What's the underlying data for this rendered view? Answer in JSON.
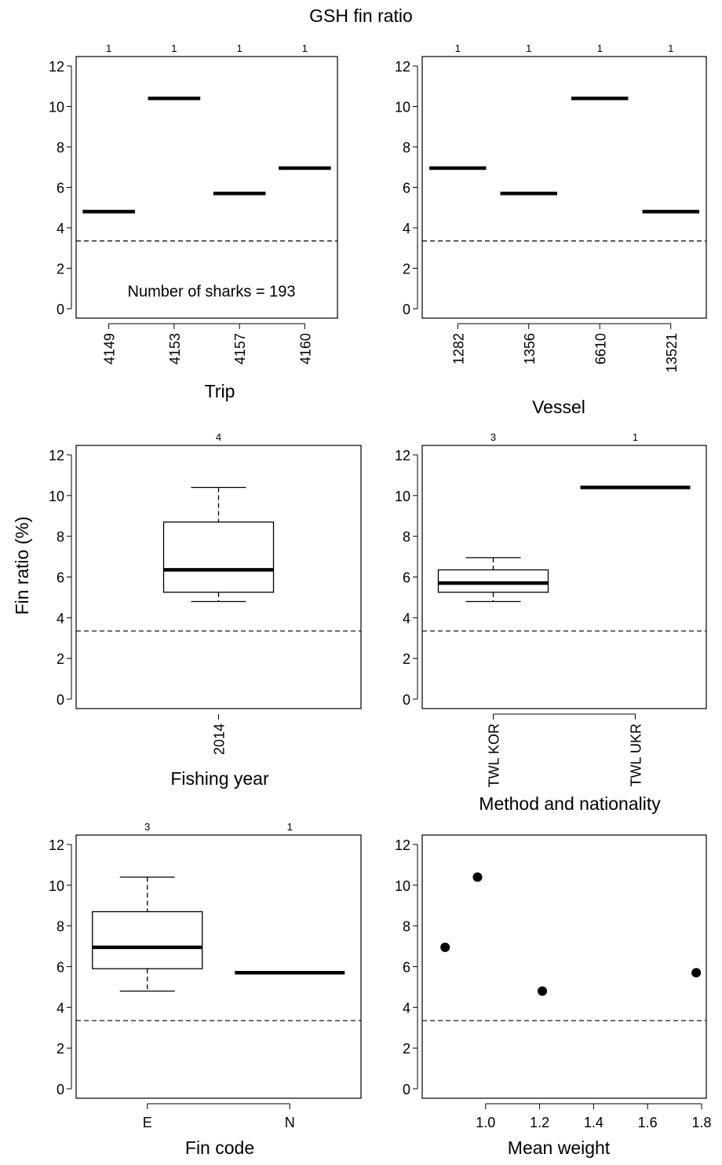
{
  "figure": {
    "title": "GSH fin ratio",
    "ylabel": "Fin ratio (%)",
    "reference_line": 3.35
  },
  "chart_data": [
    {
      "id": "trip",
      "type": "box",
      "xlabel": "Trip",
      "ylim": [
        0,
        12
      ],
      "yticks": [
        0,
        2,
        4,
        6,
        8,
        10,
        12
      ],
      "categories": [
        "4149",
        "4153",
        "4157",
        "4160"
      ],
      "counts": [
        "1",
        "1",
        "1",
        "1"
      ],
      "tick_rotation": "vertical",
      "annotation": "Number of sharks =  193",
      "boxes": [
        {
          "median": 4.8
        },
        {
          "median": 10.4
        },
        {
          "median": 5.7
        },
        {
          "median": 6.95
        }
      ]
    },
    {
      "id": "vessel",
      "type": "box",
      "xlabel": "Vessel",
      "ylim": [
        0,
        12
      ],
      "yticks": [
        0,
        2,
        4,
        6,
        8,
        10,
        12
      ],
      "categories": [
        "1282",
        "1356",
        "6610",
        "13521"
      ],
      "counts": [
        "1",
        "1",
        "1",
        "1"
      ],
      "tick_rotation": "vertical",
      "boxes": [
        {
          "median": 6.95
        },
        {
          "median": 5.7
        },
        {
          "median": 10.4
        },
        {
          "median": 4.8
        }
      ]
    },
    {
      "id": "year",
      "type": "box",
      "xlabel": "Fishing year",
      "ylim": [
        0,
        12
      ],
      "yticks": [
        0,
        2,
        4,
        6,
        8,
        10,
        12
      ],
      "categories": [
        "2014"
      ],
      "counts": [
        "4"
      ],
      "tick_rotation": "vertical",
      "boxes": [
        {
          "min": 4.8,
          "q1": 5.25,
          "median": 6.35,
          "q3": 8.7,
          "max": 10.4
        }
      ]
    },
    {
      "id": "method",
      "type": "box",
      "xlabel": "Method and nationality",
      "ylim": [
        0,
        12
      ],
      "yticks": [
        0,
        2,
        4,
        6,
        8,
        10,
        12
      ],
      "categories": [
        "TWL KOR",
        "TWL UKR"
      ],
      "counts": [
        "3",
        "1"
      ],
      "tick_rotation": "vertical",
      "boxes": [
        {
          "min": 4.8,
          "q1": 5.25,
          "median": 5.7,
          "q3": 6.35,
          "max": 6.95
        },
        {
          "median": 10.4
        }
      ]
    },
    {
      "id": "fincode",
      "type": "box",
      "xlabel": "Fin code",
      "ylim": [
        0,
        12
      ],
      "yticks": [
        0,
        2,
        4,
        6,
        8,
        10,
        12
      ],
      "categories": [
        "E",
        "N"
      ],
      "counts": [
        "3",
        "1"
      ],
      "tick_rotation": "horizontal",
      "boxes": [
        {
          "min": 4.8,
          "q1": 5.9,
          "median": 6.95,
          "q3": 8.7,
          "max": 10.4
        },
        {
          "median": 5.7
        }
      ]
    },
    {
      "id": "weight",
      "type": "scatter",
      "xlabel": "Mean weight",
      "ylim": [
        0,
        12
      ],
      "yticks": [
        0,
        2,
        4,
        6,
        8,
        10,
        12
      ],
      "xlim": [
        0.8,
        1.8
      ],
      "xticks": [
        "1.0",
        "1.2",
        "1.4",
        "1.6",
        "1.8"
      ],
      "points": [
        {
          "x": 0.85,
          "y": 6.95
        },
        {
          "x": 0.97,
          "y": 10.4
        },
        {
          "x": 1.21,
          "y": 4.8
        },
        {
          "x": 1.78,
          "y": 5.7
        }
      ]
    }
  ]
}
